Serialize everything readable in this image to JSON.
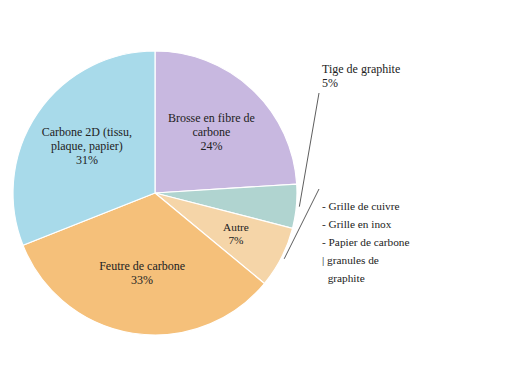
{
  "chart_data": {
    "type": "pie",
    "categories": [
      "Brosse en fibre de\ncarbone",
      "Tige de graphite",
      "Autre",
      "Feutre de carbone",
      "Carbone 2D (tissu,\nplaque, papier)"
    ],
    "values": [
      24,
      5,
      7,
      33,
      31
    ],
    "value_labels": [
      "24%",
      "5%",
      "7%",
      "33%",
      "31%"
    ],
    "colors": [
      "#c8b8e0",
      "#b0d4d0",
      "#f5d5a8",
      "#f5c07a",
      "#a8daea"
    ],
    "data_labels": true,
    "annotations": [
      "- Grille de cuivre\n- Grille en inox\n- Papier de carbone\n| granules de\n  graphite"
    ]
  }
}
